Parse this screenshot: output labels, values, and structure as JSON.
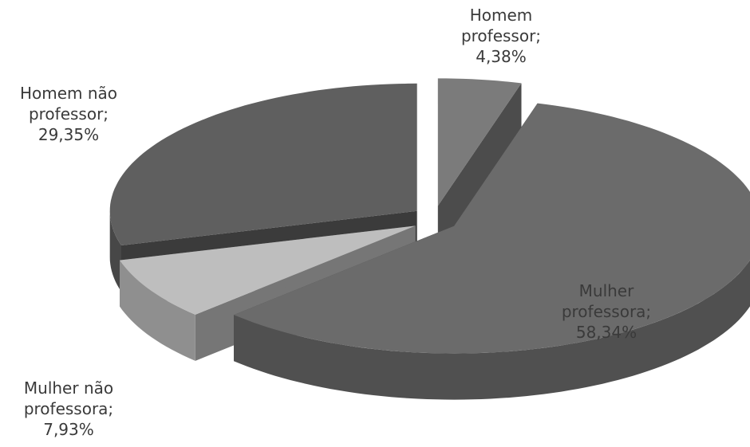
{
  "chart_data": {
    "type": "pie3d",
    "categories": [
      "Homem professor;",
      "Mulher professora;",
      "Mulher não professora;",
      "Homem não professor;"
    ],
    "values": [
      4.38,
      58.34,
      7.93,
      29.35
    ],
    "value_labels": [
      "4,38%",
      "58,34%",
      "7,93%",
      "29,35%"
    ],
    "colors": [
      "#7b7b7b",
      "#6b6b6b",
      "#bebebe",
      "#5f5f5f"
    ]
  }
}
